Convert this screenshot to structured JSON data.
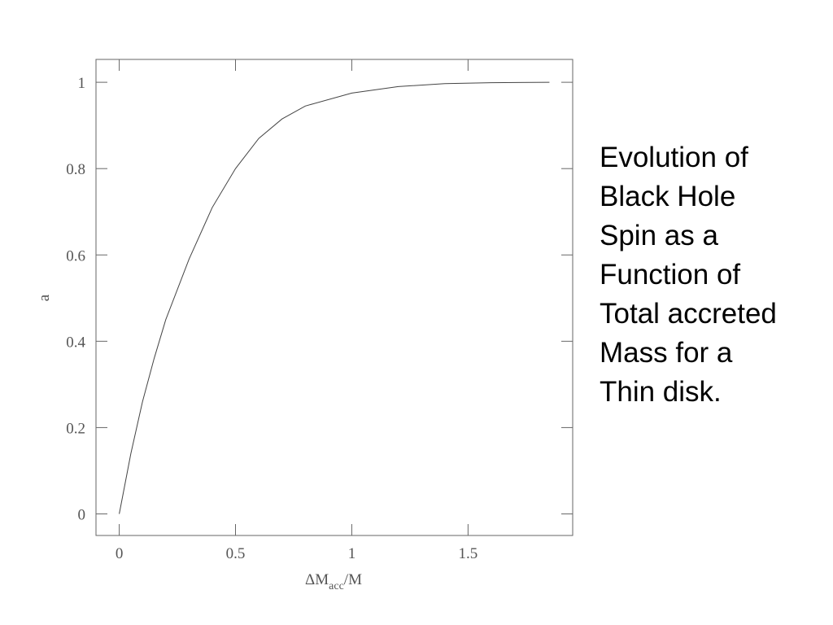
{
  "chart_data": {
    "type": "line",
    "caption_lines": [
      "Evolution of",
      "Black Hole",
      "Spin as a",
      "Function of",
      "Total accreted",
      "Mass for a",
      "Thin disk."
    ],
    "ylabel": "a",
    "xlabel": {
      "main": "ΔM",
      "sub": "acc",
      "tail": "/M"
    },
    "x": [
      0,
      0.05,
      0.1,
      0.15,
      0.2,
      0.3,
      0.4,
      0.5,
      0.6,
      0.7,
      0.8,
      1.0,
      1.2,
      1.4,
      1.6,
      1.85
    ],
    "values": [
      0,
      0.14,
      0.26,
      0.36,
      0.45,
      0.59,
      0.71,
      0.8,
      0.87,
      0.915,
      0.945,
      0.975,
      0.99,
      0.997,
      0.999,
      1.0
    ],
    "color": "#444444",
    "xlim": [
      -0.1,
      1.95
    ],
    "ylim": [
      -0.05,
      1.053
    ],
    "xticks": [
      0,
      0.5,
      1,
      1.5
    ],
    "yticks": [
      0,
      0.2,
      0.4,
      0.6,
      0.8,
      1
    ]
  }
}
